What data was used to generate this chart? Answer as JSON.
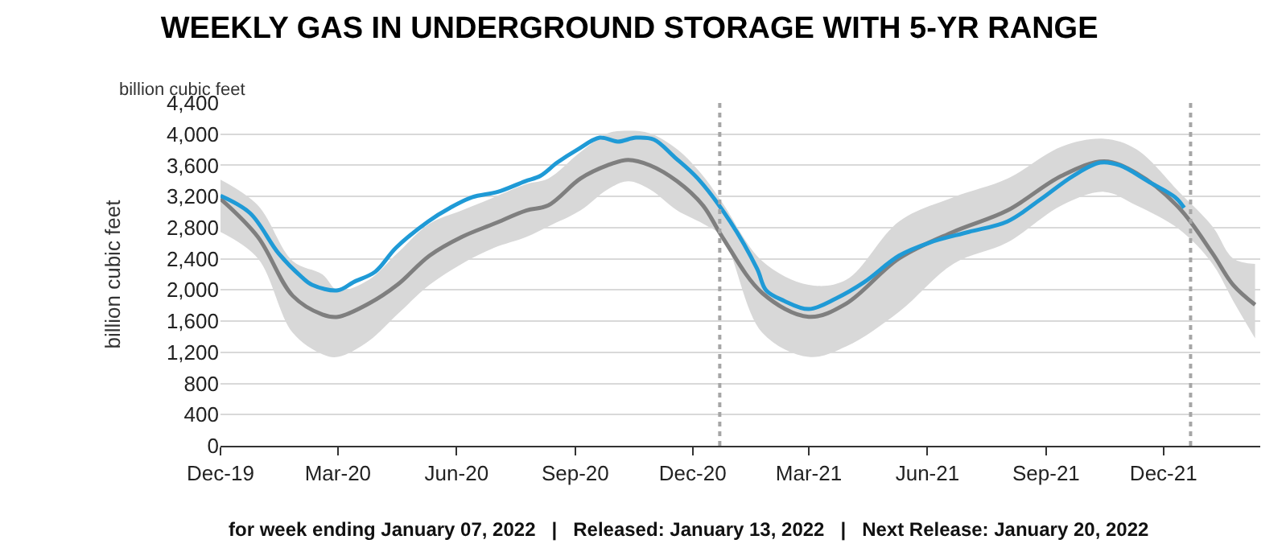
{
  "chart_data": {
    "type": "line",
    "title": "WEEKLY GAS IN UNDERGROUND STORAGE WITH 5-YR RANGE",
    "ylabel": "billion cubic feet",
    "annotations": [
      "billion cubic feet",
      "for week ending January 07, 2022   |   Released: January 13, 2022   |   Next Release: January 20, 2022"
    ],
    "xlim": [
      "2019-12-01",
      "2022-02-14"
    ],
    "xticks": [
      {
        "value": "2019-12-01",
        "label": "Dec-19"
      },
      {
        "value": "2020-03-01",
        "label": "Mar-20"
      },
      {
        "value": "2020-06-01",
        "label": "Jun-20"
      },
      {
        "value": "2020-09-01",
        "label": "Sep-20"
      },
      {
        "value": "2020-12-01",
        "label": "Dec-20"
      },
      {
        "value": "2021-03-01",
        "label": "Mar-21"
      },
      {
        "value": "2021-06-01",
        "label": "Jun-21"
      },
      {
        "value": "2021-09-01",
        "label": "Sep-21"
      },
      {
        "value": "2021-12-01",
        "label": "Dec-21"
      }
    ],
    "ylim": [
      0,
      4400
    ],
    "yticks": [
      0,
      400,
      800,
      {
        "value": 1200,
        "label": "1,200"
      },
      {
        "value": 1600,
        "label": "1,600"
      },
      {
        "value": 2000,
        "label": "2,000"
      },
      {
        "value": 2400,
        "label": "2,400"
      },
      {
        "value": 2800,
        "label": "2,800"
      },
      {
        "value": 3200,
        "label": "3,200"
      },
      {
        "value": 3600,
        "label": "3,600"
      },
      {
        "value": 4000,
        "label": "4,000"
      },
      {
        "value": 4400,
        "label": "4,400"
      }
    ],
    "grid": "y",
    "marker": "none",
    "line_style": "solid",
    "ref_lines": [
      {
        "axis": "x",
        "value": "2020-12-22",
        "color": "#a6a6a6",
        "line_style": "dotted"
      },
      {
        "axis": "x",
        "value": "2021-12-22",
        "color": "#a6a6a6",
        "line_style": "dotted"
      }
    ],
    "series": [
      {
        "color": "#7f7f7f",
        "x": [
          "2019-12-01",
          "2019-12-30",
          "2020-01-26",
          "2020-02-18",
          "2020-03-01",
          "2020-03-25",
          "2020-04-16",
          "2020-05-11",
          "2020-06-05",
          "2020-06-30",
          "2020-07-25",
          "2020-08-11",
          "2020-09-05",
          "2020-09-26",
          "2020-10-12",
          "2020-10-29",
          "2020-11-19",
          "2020-12-09",
          "2020-12-24",
          "2021-01-24",
          "2021-03-01",
          "2021-03-30",
          "2021-05-10",
          "2021-06-21",
          "2021-08-02",
          "2021-09-13",
          "2021-10-16",
          "2021-11-10",
          "2021-12-13",
          "2022-01-08",
          "2022-01-24",
          "2022-02-10"
        ],
        "values": [
          3170,
          2680,
          1925,
          1685,
          1655,
          1825,
          2065,
          2440,
          2680,
          2850,
          3020,
          3085,
          3430,
          3600,
          3670,
          3600,
          3395,
          3085,
          2680,
          1960,
          1655,
          1825,
          2405,
          2745,
          3020,
          3465,
          3650,
          3500,
          3055,
          2470,
          2065,
          1810
        ],
        "upper": [
          3415,
          3085,
          2370,
          2200,
          1995,
          2130,
          2470,
          2850,
          3020,
          3190,
          3360,
          3430,
          3770,
          4010,
          4045,
          4010,
          3805,
          3465,
          3120,
          2370,
          2065,
          2130,
          2880,
          3190,
          3430,
          3840,
          3940,
          3805,
          3260,
          2815,
          2405,
          2335
        ],
        "lower": [
          2745,
          2405,
          1450,
          1175,
          1140,
          1345,
          1685,
          2065,
          2335,
          2540,
          2680,
          2815,
          3020,
          3290,
          3395,
          3290,
          3020,
          2850,
          2680,
          1450,
          1140,
          1275,
          1720,
          2335,
          2610,
          3085,
          3260,
          3085,
          2780,
          2335,
          1860,
          1380
        ]
      },
      {
        "color": "#1f9ad6",
        "x": [
          "2019-12-01",
          "2019-12-24",
          "2020-01-15",
          "2020-02-02",
          "2020-02-10",
          "2020-03-01",
          "2020-03-13",
          "2020-03-30",
          "2020-04-15",
          "2020-05-10",
          "2020-05-27",
          "2020-06-13",
          "2020-07-03",
          "2020-07-24",
          "2020-08-05",
          "2020-08-18",
          "2020-09-03",
          "2020-09-20",
          "2020-10-04",
          "2020-10-18",
          "2020-11-01",
          "2020-11-17",
          "2020-12-05",
          "2020-12-30",
          "2021-01-20",
          "2021-01-27",
          "2021-02-10",
          "2021-03-01",
          "2021-03-22",
          "2021-04-13",
          "2021-05-10",
          "2021-06-03",
          "2021-07-03",
          "2021-08-02",
          "2021-08-27",
          "2021-09-22",
          "2021-10-13",
          "2021-10-28",
          "2021-11-19",
          "2021-12-10",
          "2021-12-17"
        ],
        "values": [
          3210,
          2985,
          2470,
          2165,
          2065,
          1995,
          2100,
          2235,
          2540,
          2880,
          3055,
          3190,
          3260,
          3395,
          3465,
          3635,
          3805,
          3955,
          3905,
          3955,
          3930,
          3705,
          3430,
          2880,
          2270,
          1995,
          1860,
          1755,
          1890,
          2100,
          2440,
          2610,
          2745,
          2880,
          3155,
          3465,
          3635,
          3600,
          3395,
          3190,
          3055
        ]
      }
    ]
  }
}
